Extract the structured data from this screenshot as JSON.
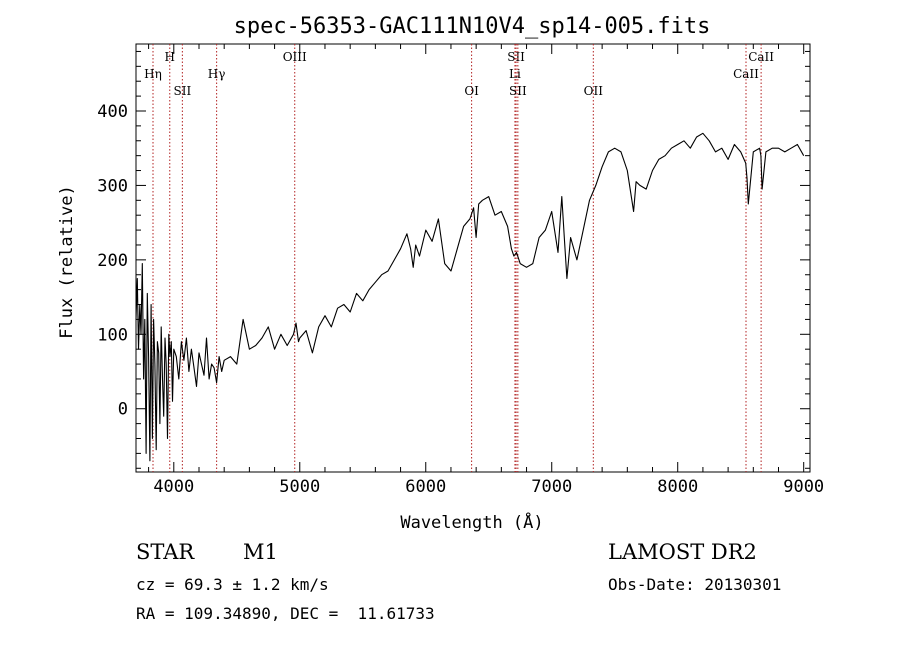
{
  "chart_data": {
    "type": "line",
    "title": "spec-56353-GAC111N10V4_sp14-005.fits",
    "xlabel": "Wavelength (Å)",
    "ylabel": "Flux (relative)",
    "xlim": [
      3700,
      9050
    ],
    "ylim": [
      -85,
      490
    ],
    "xticks": [
      4000,
      5000,
      6000,
      7000,
      8000,
      9000
    ],
    "yticks": [
      0,
      100,
      200,
      300,
      400
    ],
    "grid": false,
    "line_color": "#000000",
    "marker_color": "#b22222",
    "series": [
      {
        "x": [
          3700,
          3710,
          3720,
          3730,
          3740,
          3750,
          3760,
          3770,
          3780,
          3790,
          3800,
          3810,
          3820,
          3830,
          3840,
          3850,
          3860,
          3870,
          3880,
          3890,
          3900,
          3910,
          3920,
          3930,
          3940,
          3950,
          3960,
          3970,
          3980,
          3990,
          4000,
          4020,
          4040,
          4060,
          4080,
          4100,
          4120,
          4140,
          4160,
          4180,
          4200,
          4220,
          4240,
          4260,
          4280,
          4300,
          4320,
          4340,
          4360,
          4380,
          4400,
          4450,
          4500,
          4550,
          4600,
          4650,
          4700,
          4750,
          4800,
          4850,
          4900,
          4950,
          4970,
          4990,
          5000,
          5050,
          5100,
          5150,
          5200,
          5250,
          5300,
          5350,
          5400,
          5450,
          5500,
          5550,
          5600,
          5650,
          5700,
          5750,
          5800,
          5850,
          5880,
          5900,
          5920,
          5950,
          6000,
          6050,
          6100,
          6150,
          6200,
          6250,
          6300,
          6350,
          6380,
          6400,
          6420,
          6450,
          6500,
          6550,
          6600,
          6650,
          6680,
          6700,
          6720,
          6750,
          6800,
          6850,
          6900,
          6950,
          7000,
          7050,
          7080,
          7100,
          7120,
          7150,
          7200,
          7250,
          7300,
          7350,
          7400,
          7450,
          7500,
          7550,
          7600,
          7650,
          7670,
          7700,
          7750,
          7800,
          7850,
          7900,
          7950,
          8000,
          8050,
          8100,
          8150,
          8200,
          8250,
          8300,
          8350,
          8400,
          8450,
          8500,
          8540,
          8550,
          8560,
          8600,
          8650,
          8660,
          8670,
          8700,
          8750,
          8800,
          8850,
          8900,
          8950,
          9000
        ],
        "y": [
          120,
          175,
          80,
          140,
          100,
          195,
          40,
          120,
          -60,
          155,
          70,
          -70,
          140,
          -40,
          120,
          60,
          -55,
          90,
          75,
          -20,
          110,
          40,
          -10,
          95,
          60,
          -40,
          100,
          70,
          90,
          10,
          80,
          70,
          40,
          90,
          65,
          95,
          50,
          80,
          55,
          30,
          75,
          60,
          45,
          95,
          40,
          60,
          55,
          35,
          70,
          50,
          65,
          70,
          60,
          120,
          80,
          85,
          95,
          110,
          80,
          100,
          85,
          100,
          115,
          90,
          95,
          105,
          75,
          110,
          125,
          110,
          135,
          140,
          130,
          155,
          145,
          160,
          170,
          180,
          185,
          200,
          215,
          235,
          215,
          190,
          220,
          205,
          240,
          225,
          255,
          195,
          185,
          215,
          245,
          255,
          270,
          230,
          275,
          280,
          285,
          260,
          265,
          245,
          215,
          205,
          210,
          195,
          190,
          195,
          230,
          240,
          265,
          210,
          285,
          230,
          175,
          230,
          200,
          240,
          280,
          300,
          325,
          345,
          350,
          345,
          320,
          265,
          305,
          300,
          295,
          320,
          335,
          340,
          350,
          355,
          360,
          350,
          365,
          370,
          360,
          345,
          350,
          335,
          355,
          345,
          330,
          310,
          275,
          345,
          350,
          340,
          295,
          345,
          350,
          350,
          345,
          350,
          355,
          340
        ]
      }
    ],
    "line_markers": [
      {
        "label": "Hη",
        "x": 3835,
        "row": 1
      },
      {
        "label": "H",
        "x": 3968,
        "row": 0
      },
      {
        "label": "SII",
        "x": 4068,
        "row": 2
      },
      {
        "label": "Hγ",
        "x": 4340,
        "row": 1
      },
      {
        "label": "OIII",
        "x": 4960,
        "row": 0
      },
      {
        "label": "OI",
        "x": 6364,
        "row": 2
      },
      {
        "label": "SII",
        "x": 6717,
        "row": 0
      },
      {
        "label": "Li",
        "x": 6708,
        "row": 1
      },
      {
        "label": "SII",
        "x": 6731,
        "row": 2
      },
      {
        "label": "OII",
        "x": 7330,
        "row": 2
      },
      {
        "label": "CaII",
        "x": 8662,
        "row": 0
      },
      {
        "label": "CaII",
        "x": 8542,
        "row": 1
      }
    ]
  },
  "info": {
    "class": "STAR",
    "subclass": "M1",
    "survey": "LAMOST DR2",
    "cz": "cz = 69.3 ± 1.2 km/s",
    "obs_date": "Obs-Date: 20130301",
    "coords": "RA = 109.34890, DEC =  11.61733"
  }
}
